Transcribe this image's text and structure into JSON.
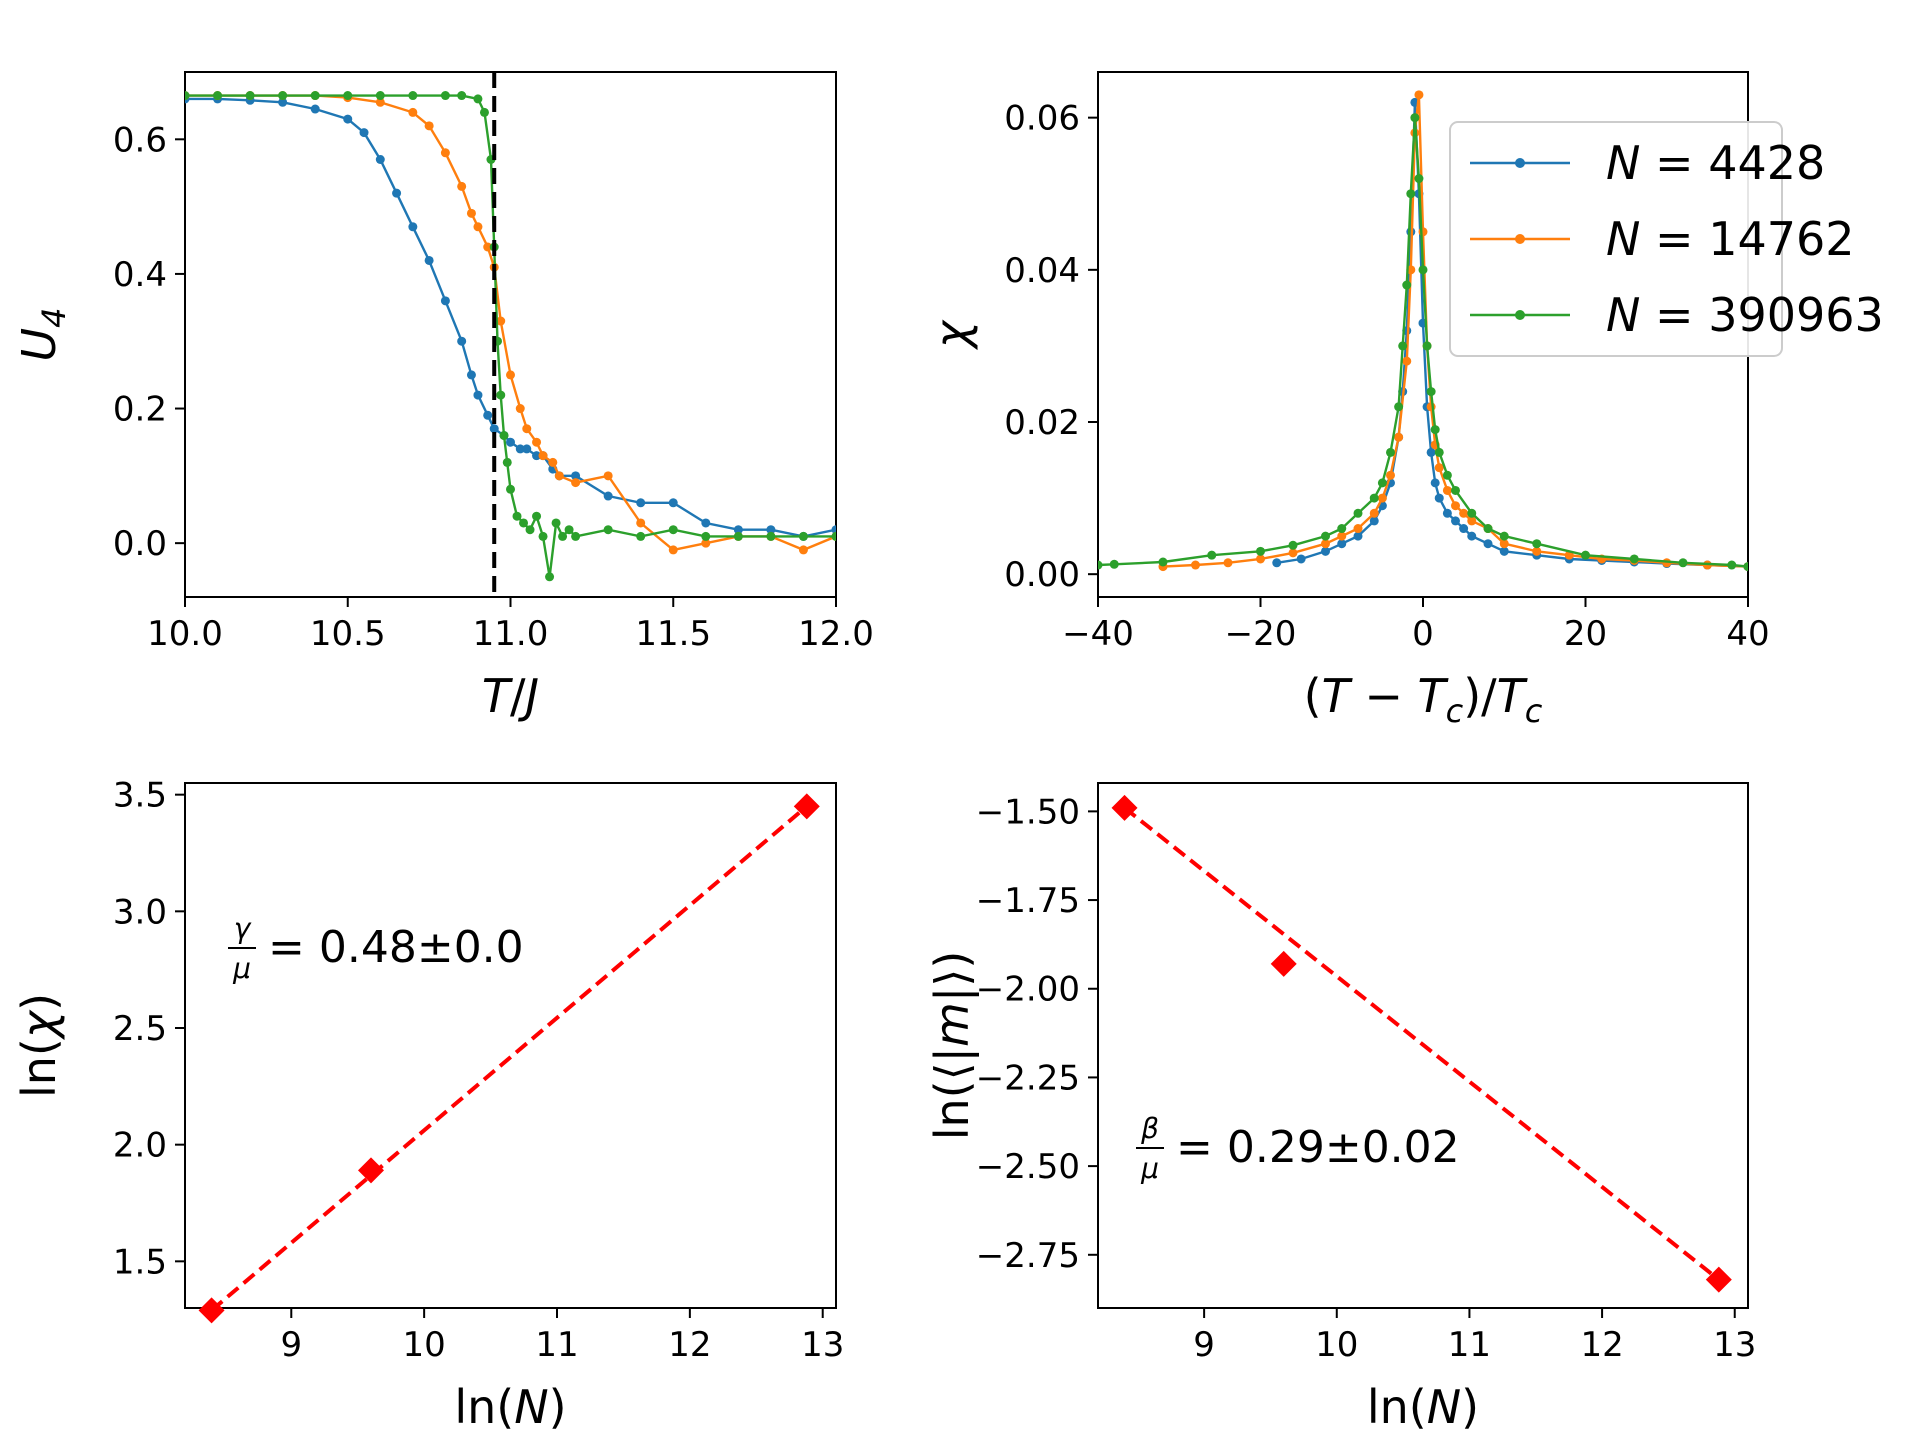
{
  "chart_data": [
    {
      "type": "line",
      "panel": "top-left",
      "xlabel": "T/J",
      "ylabel": "U_4",
      "xlim": [
        10.0,
        12.0
      ],
      "ylim": [
        -0.08,
        0.7
      ],
      "xticks": [
        "10.0",
        "10.5",
        "11.0",
        "11.5",
        "12.0"
      ],
      "yticks": [
        "0.0",
        "0.2",
        "0.4",
        "0.6"
      ],
      "xtick_values": [
        10.0,
        10.5,
        11.0,
        11.5,
        12.0
      ],
      "ytick_values": [
        0.0,
        0.2,
        0.4,
        0.6
      ],
      "vline": {
        "x": 10.95,
        "style": "dashed",
        "color": "#000000"
      },
      "series": [
        {
          "name": "N = 4428",
          "color": "#1f77b4",
          "x": [
            10.0,
            10.1,
            10.2,
            10.3,
            10.4,
            10.5,
            10.55,
            10.6,
            10.65,
            10.7,
            10.75,
            10.8,
            10.85,
            10.88,
            10.9,
            10.93,
            10.95,
            10.98,
            11.0,
            11.03,
            11.05,
            11.08,
            11.1,
            11.13,
            11.15,
            11.2,
            11.3,
            11.4,
            11.5,
            11.6,
            11.7,
            11.8,
            11.9,
            12.0
          ],
          "y": [
            0.66,
            0.66,
            0.658,
            0.655,
            0.645,
            0.63,
            0.61,
            0.57,
            0.52,
            0.47,
            0.42,
            0.36,
            0.3,
            0.25,
            0.22,
            0.19,
            0.17,
            0.16,
            0.15,
            0.14,
            0.14,
            0.13,
            0.13,
            0.11,
            0.1,
            0.1,
            0.07,
            0.06,
            0.06,
            0.03,
            0.02,
            0.02,
            0.01,
            0.02
          ]
        },
        {
          "name": "N = 14762",
          "color": "#ff7f0e",
          "x": [
            10.0,
            10.1,
            10.2,
            10.3,
            10.4,
            10.5,
            10.6,
            10.7,
            10.75,
            10.8,
            10.85,
            10.88,
            10.9,
            10.93,
            10.95,
            10.97,
            11.0,
            11.03,
            11.05,
            11.08,
            11.1,
            11.13,
            11.15,
            11.2,
            11.3,
            11.4,
            11.5,
            11.6,
            11.7,
            11.8,
            11.9,
            12.0
          ],
          "y": [
            0.665,
            0.665,
            0.665,
            0.665,
            0.665,
            0.662,
            0.655,
            0.64,
            0.62,
            0.58,
            0.53,
            0.49,
            0.47,
            0.44,
            0.41,
            0.33,
            0.25,
            0.2,
            0.17,
            0.15,
            0.13,
            0.12,
            0.1,
            0.09,
            0.1,
            0.03,
            -0.01,
            0.0,
            0.01,
            0.01,
            -0.01,
            0.01
          ]
        },
        {
          "name": "N = 390963",
          "color": "#2ca02c",
          "x": [
            10.0,
            10.1,
            10.2,
            10.3,
            10.4,
            10.5,
            10.6,
            10.7,
            10.8,
            10.85,
            10.9,
            10.92,
            10.94,
            10.95,
            10.96,
            10.97,
            10.98,
            10.99,
            11.0,
            11.02,
            11.04,
            11.06,
            11.08,
            11.1,
            11.12,
            11.14,
            11.16,
            11.18,
            11.2,
            11.3,
            11.4,
            11.5,
            11.6,
            11.7,
            11.8,
            11.9,
            12.0
          ],
          "y": [
            0.665,
            0.665,
            0.665,
            0.665,
            0.665,
            0.665,
            0.665,
            0.665,
            0.665,
            0.665,
            0.66,
            0.64,
            0.57,
            0.44,
            0.3,
            0.22,
            0.16,
            0.12,
            0.08,
            0.04,
            0.03,
            0.02,
            0.04,
            0.01,
            -0.05,
            0.03,
            0.01,
            0.02,
            0.01,
            0.02,
            0.01,
            0.02,
            0.01,
            0.01,
            0.01,
            0.01,
            0.01
          ]
        }
      ]
    },
    {
      "type": "line",
      "panel": "top-right",
      "xlabel": "(T − T_c)/T_c",
      "ylabel": "χ",
      "xlim": [
        -40,
        40
      ],
      "ylim": [
        -0.003,
        0.066
      ],
      "xticks": [
        "−40",
        "−20",
        "0",
        "20",
        "40"
      ],
      "yticks": [
        "0.00",
        "0.02",
        "0.04",
        "0.06"
      ],
      "xtick_values": [
        -40,
        -20,
        0,
        20,
        40
      ],
      "ytick_values": [
        0.0,
        0.02,
        0.04,
        0.06
      ],
      "legend": {
        "placement": "top-right",
        "entries": [
          "N = 4428",
          "N = 14762",
          "N = 390963"
        ]
      },
      "series": [
        {
          "name": "N = 4428",
          "color": "#1f77b4",
          "x": [
            -18,
            -15,
            -12,
            -10,
            -8,
            -6,
            -5,
            -4,
            -3,
            -2.5,
            -2,
            -1.5,
            -1,
            -0.5,
            0,
            0.5,
            1,
            1.5,
            2,
            3,
            4,
            5,
            6,
            8,
            10,
            14,
            18,
            22,
            26,
            30,
            35,
            40
          ],
          "y": [
            0.0015,
            0.002,
            0.003,
            0.004,
            0.005,
            0.007,
            0.009,
            0.012,
            0.018,
            0.024,
            0.032,
            0.045,
            0.062,
            0.05,
            0.033,
            0.022,
            0.016,
            0.012,
            0.01,
            0.008,
            0.007,
            0.006,
            0.005,
            0.004,
            0.003,
            0.0025,
            0.002,
            0.0018,
            0.0016,
            0.0014,
            0.0012,
            0.001
          ]
        },
        {
          "name": "N = 14762",
          "color": "#ff7f0e",
          "x": [
            -32,
            -28,
            -24,
            -20,
            -16,
            -12,
            -10,
            -8,
            -6,
            -5,
            -4,
            -3,
            -2,
            -1.5,
            -1,
            -0.5,
            0,
            0.5,
            1,
            1.5,
            2,
            3,
            4,
            5,
            6,
            8,
            10,
            14,
            18,
            22,
            26,
            30,
            35,
            40
          ],
          "y": [
            0.001,
            0.0012,
            0.0015,
            0.002,
            0.0028,
            0.004,
            0.005,
            0.006,
            0.008,
            0.01,
            0.013,
            0.018,
            0.028,
            0.04,
            0.058,
            0.063,
            0.045,
            0.03,
            0.022,
            0.017,
            0.014,
            0.011,
            0.009,
            0.008,
            0.007,
            0.006,
            0.004,
            0.003,
            0.0025,
            0.002,
            0.0018,
            0.0015,
            0.0012,
            0.001
          ]
        },
        {
          "name": "N = 390963",
          "color": "#2ca02c",
          "x": [
            -40,
            -38,
            -32,
            -26,
            -20,
            -16,
            -12,
            -10,
            -8,
            -6,
            -5,
            -4,
            -3,
            -2.5,
            -2,
            -1.5,
            -1,
            -0.5,
            0,
            0.5,
            1,
            1.5,
            2,
            3,
            4,
            6,
            8,
            10,
            14,
            20,
            26,
            32,
            38,
            40
          ],
          "y": [
            0.0012,
            0.0013,
            0.0016,
            0.0025,
            0.003,
            0.0038,
            0.005,
            0.006,
            0.008,
            0.01,
            0.012,
            0.016,
            0.022,
            0.03,
            0.038,
            0.05,
            0.06,
            0.052,
            0.04,
            0.03,
            0.024,
            0.019,
            0.016,
            0.013,
            0.011,
            0.008,
            0.006,
            0.005,
            0.004,
            0.0025,
            0.002,
            0.0015,
            0.0012,
            0.001
          ]
        }
      ]
    },
    {
      "type": "scatter",
      "panel": "bottom-left",
      "xlabel": "ln(N)",
      "ylabel": "ln(χ)",
      "xlim": [
        8.2,
        13.1
      ],
      "ylim": [
        1.3,
        3.55
      ],
      "xticks": [
        "9",
        "10",
        "11",
        "12",
        "13"
      ],
      "yticks": [
        "1.5",
        "2.0",
        "2.5",
        "3.0",
        "3.5"
      ],
      "xtick_values": [
        9,
        10,
        11,
        12,
        13
      ],
      "ytick_values": [
        1.5,
        2.0,
        2.5,
        3.0,
        3.5
      ],
      "annotation": {
        "symbol": "γ",
        "over": "μ",
        "value": "0.48±0.0"
      },
      "points": {
        "x": [
          8.4,
          9.6,
          12.88
        ],
        "y": [
          1.29,
          1.89,
          3.45
        ],
        "color": "#ff0000",
        "marker": "diamond"
      },
      "fit": {
        "x": [
          8.4,
          12.88
        ],
        "y": [
          1.29,
          3.45
        ],
        "color": "#ff0000",
        "style": "dashed"
      }
    },
    {
      "type": "scatter",
      "panel": "bottom-right",
      "xlabel": "ln(⟨|m|⟩)",
      "xlabel_note": "",
      "ylabel": "ln(⟨|m|⟩)",
      "xaxis_label": "ln(N)",
      "xlim": [
        8.2,
        13.1
      ],
      "ylim": [
        -2.9,
        -1.42
      ],
      "xticks": [
        "9",
        "10",
        "11",
        "12",
        "13"
      ],
      "yticks": [
        "−1.50",
        "−1.75",
        "−2.00",
        "−2.25",
        "−2.50",
        "−2.75"
      ],
      "xtick_values": [
        9,
        10,
        11,
        12,
        13
      ],
      "ytick_values": [
        -1.5,
        -1.75,
        -2.0,
        -2.25,
        -2.5,
        -2.75
      ],
      "annotation": {
        "symbol": "β",
        "over": "μ",
        "value": "0.29±0.02"
      },
      "points": {
        "x": [
          8.4,
          9.6,
          12.88
        ],
        "y": [
          -1.49,
          -1.93,
          -2.82
        ],
        "color": "#ff0000",
        "marker": "diamond"
      },
      "fit": {
        "x": [
          8.4,
          12.88
        ],
        "y": [
          -1.49,
          -2.82
        ],
        "color": "#ff0000",
        "style": "dashed"
      }
    }
  ]
}
